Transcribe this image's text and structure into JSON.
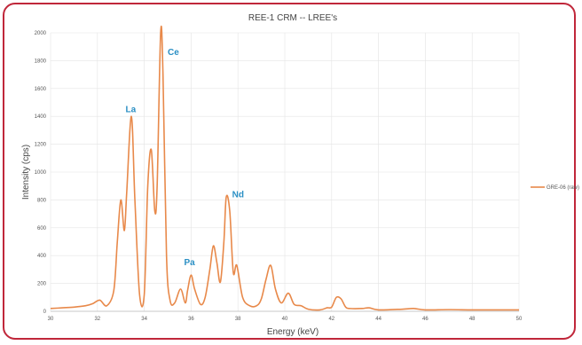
{
  "chart_data": {
    "type": "line",
    "title": "REE-1 CRM -- LREE's",
    "xlabel": "Energy (keV)",
    "ylabel": "Intensity (cps)",
    "xlim": [
      30,
      50
    ],
    "ylim": [
      0,
      2000
    ],
    "x_ticks": [
      30,
      32,
      34,
      36,
      38,
      40,
      42,
      44,
      46,
      48,
      50
    ],
    "y_ticks": [
      0,
      200,
      400,
      600,
      800,
      1000,
      1200,
      1400,
      1600,
      1800,
      2000
    ],
    "grid": true,
    "legend_position": "right",
    "line_color": "#e8894a",
    "annotation_color": "#2a8fc4",
    "series": [
      {
        "name": "GRE-06 (raw)",
        "x": [
          30,
          30.5,
          31,
          31.5,
          31.8,
          32.1,
          32.4,
          32.7,
          32.85,
          33.0,
          33.15,
          33.25,
          33.45,
          33.6,
          33.8,
          34.0,
          34.15,
          34.3,
          34.45,
          34.55,
          34.7,
          34.8,
          34.95,
          35.1,
          35.3,
          35.55,
          35.75,
          35.85,
          36.0,
          36.15,
          36.4,
          36.6,
          36.8,
          36.95,
          37.1,
          37.25,
          37.4,
          37.5,
          37.65,
          37.8,
          37.95,
          38.2,
          38.5,
          38.8,
          39.0,
          39.2,
          39.4,
          39.6,
          39.85,
          40.15,
          40.4,
          40.7,
          41.0,
          41.5,
          41.8,
          42.0,
          42.2,
          42.4,
          42.6,
          42.8,
          43.3,
          43.6,
          44,
          45,
          45.5,
          46,
          47,
          48,
          49,
          50
        ],
        "values": [
          20,
          25,
          30,
          40,
          55,
          80,
          40,
          150,
          500,
          800,
          580,
          850,
          1400,
          800,
          120,
          120,
          900,
          1160,
          720,
          900,
          2000,
          1700,
          400,
          80,
          60,
          160,
          60,
          150,
          260,
          160,
          50,
          100,
          300,
          470,
          350,
          210,
          500,
          820,
          720,
          280,
          330,
          100,
          40,
          40,
          90,
          230,
          330,
          160,
          60,
          130,
          50,
          40,
          15,
          10,
          25,
          30,
          100,
          90,
          30,
          20,
          20,
          25,
          10,
          15,
          20,
          10,
          12,
          10,
          10,
          10
        ]
      }
    ],
    "annotations": [
      {
        "text": "La",
        "x": 33.2,
        "y": 1430
      },
      {
        "text": "Ce",
        "x": 35.0,
        "y": 1840
      },
      {
        "text": "Pa",
        "x": 35.7,
        "y": 330
      },
      {
        "text": "Nd",
        "x": 37.75,
        "y": 820
      }
    ]
  }
}
